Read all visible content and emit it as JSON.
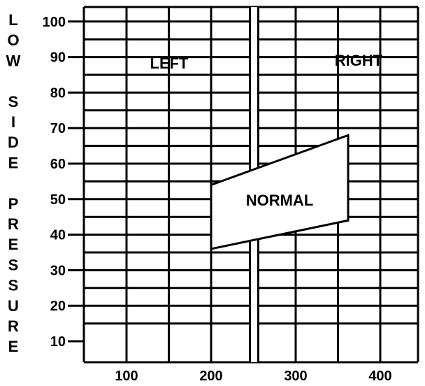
{
  "chart_data": {
    "type": "area",
    "title": "",
    "xlabel": "",
    "ylabel": "LOW SIDE PRESSURE",
    "ylabel_letters": [
      "L",
      "O",
      "W",
      "",
      "S",
      "I",
      "D",
      "E",
      "",
      "P",
      "R",
      "E",
      "S",
      "S",
      "U",
      "R",
      "E"
    ],
    "x_ticks": [
      100,
      200,
      300,
      400
    ],
    "y_ticks": [
      10,
      20,
      30,
      40,
      50,
      60,
      70,
      80,
      90,
      100
    ],
    "xlim": [
      50,
      450
    ],
    "ylim": [
      2,
      105
    ],
    "grid": true,
    "divider_x": 250,
    "regions": {
      "left": "LEFT",
      "right": "RIGHT"
    },
    "band": {
      "label": "NORMAL",
      "x": [
        200,
        362
      ],
      "lower": [
        36,
        44
      ],
      "upper": [
        54,
        68
      ]
    },
    "colors": {
      "ink": "#000000",
      "background": "#ffffff"
    }
  }
}
